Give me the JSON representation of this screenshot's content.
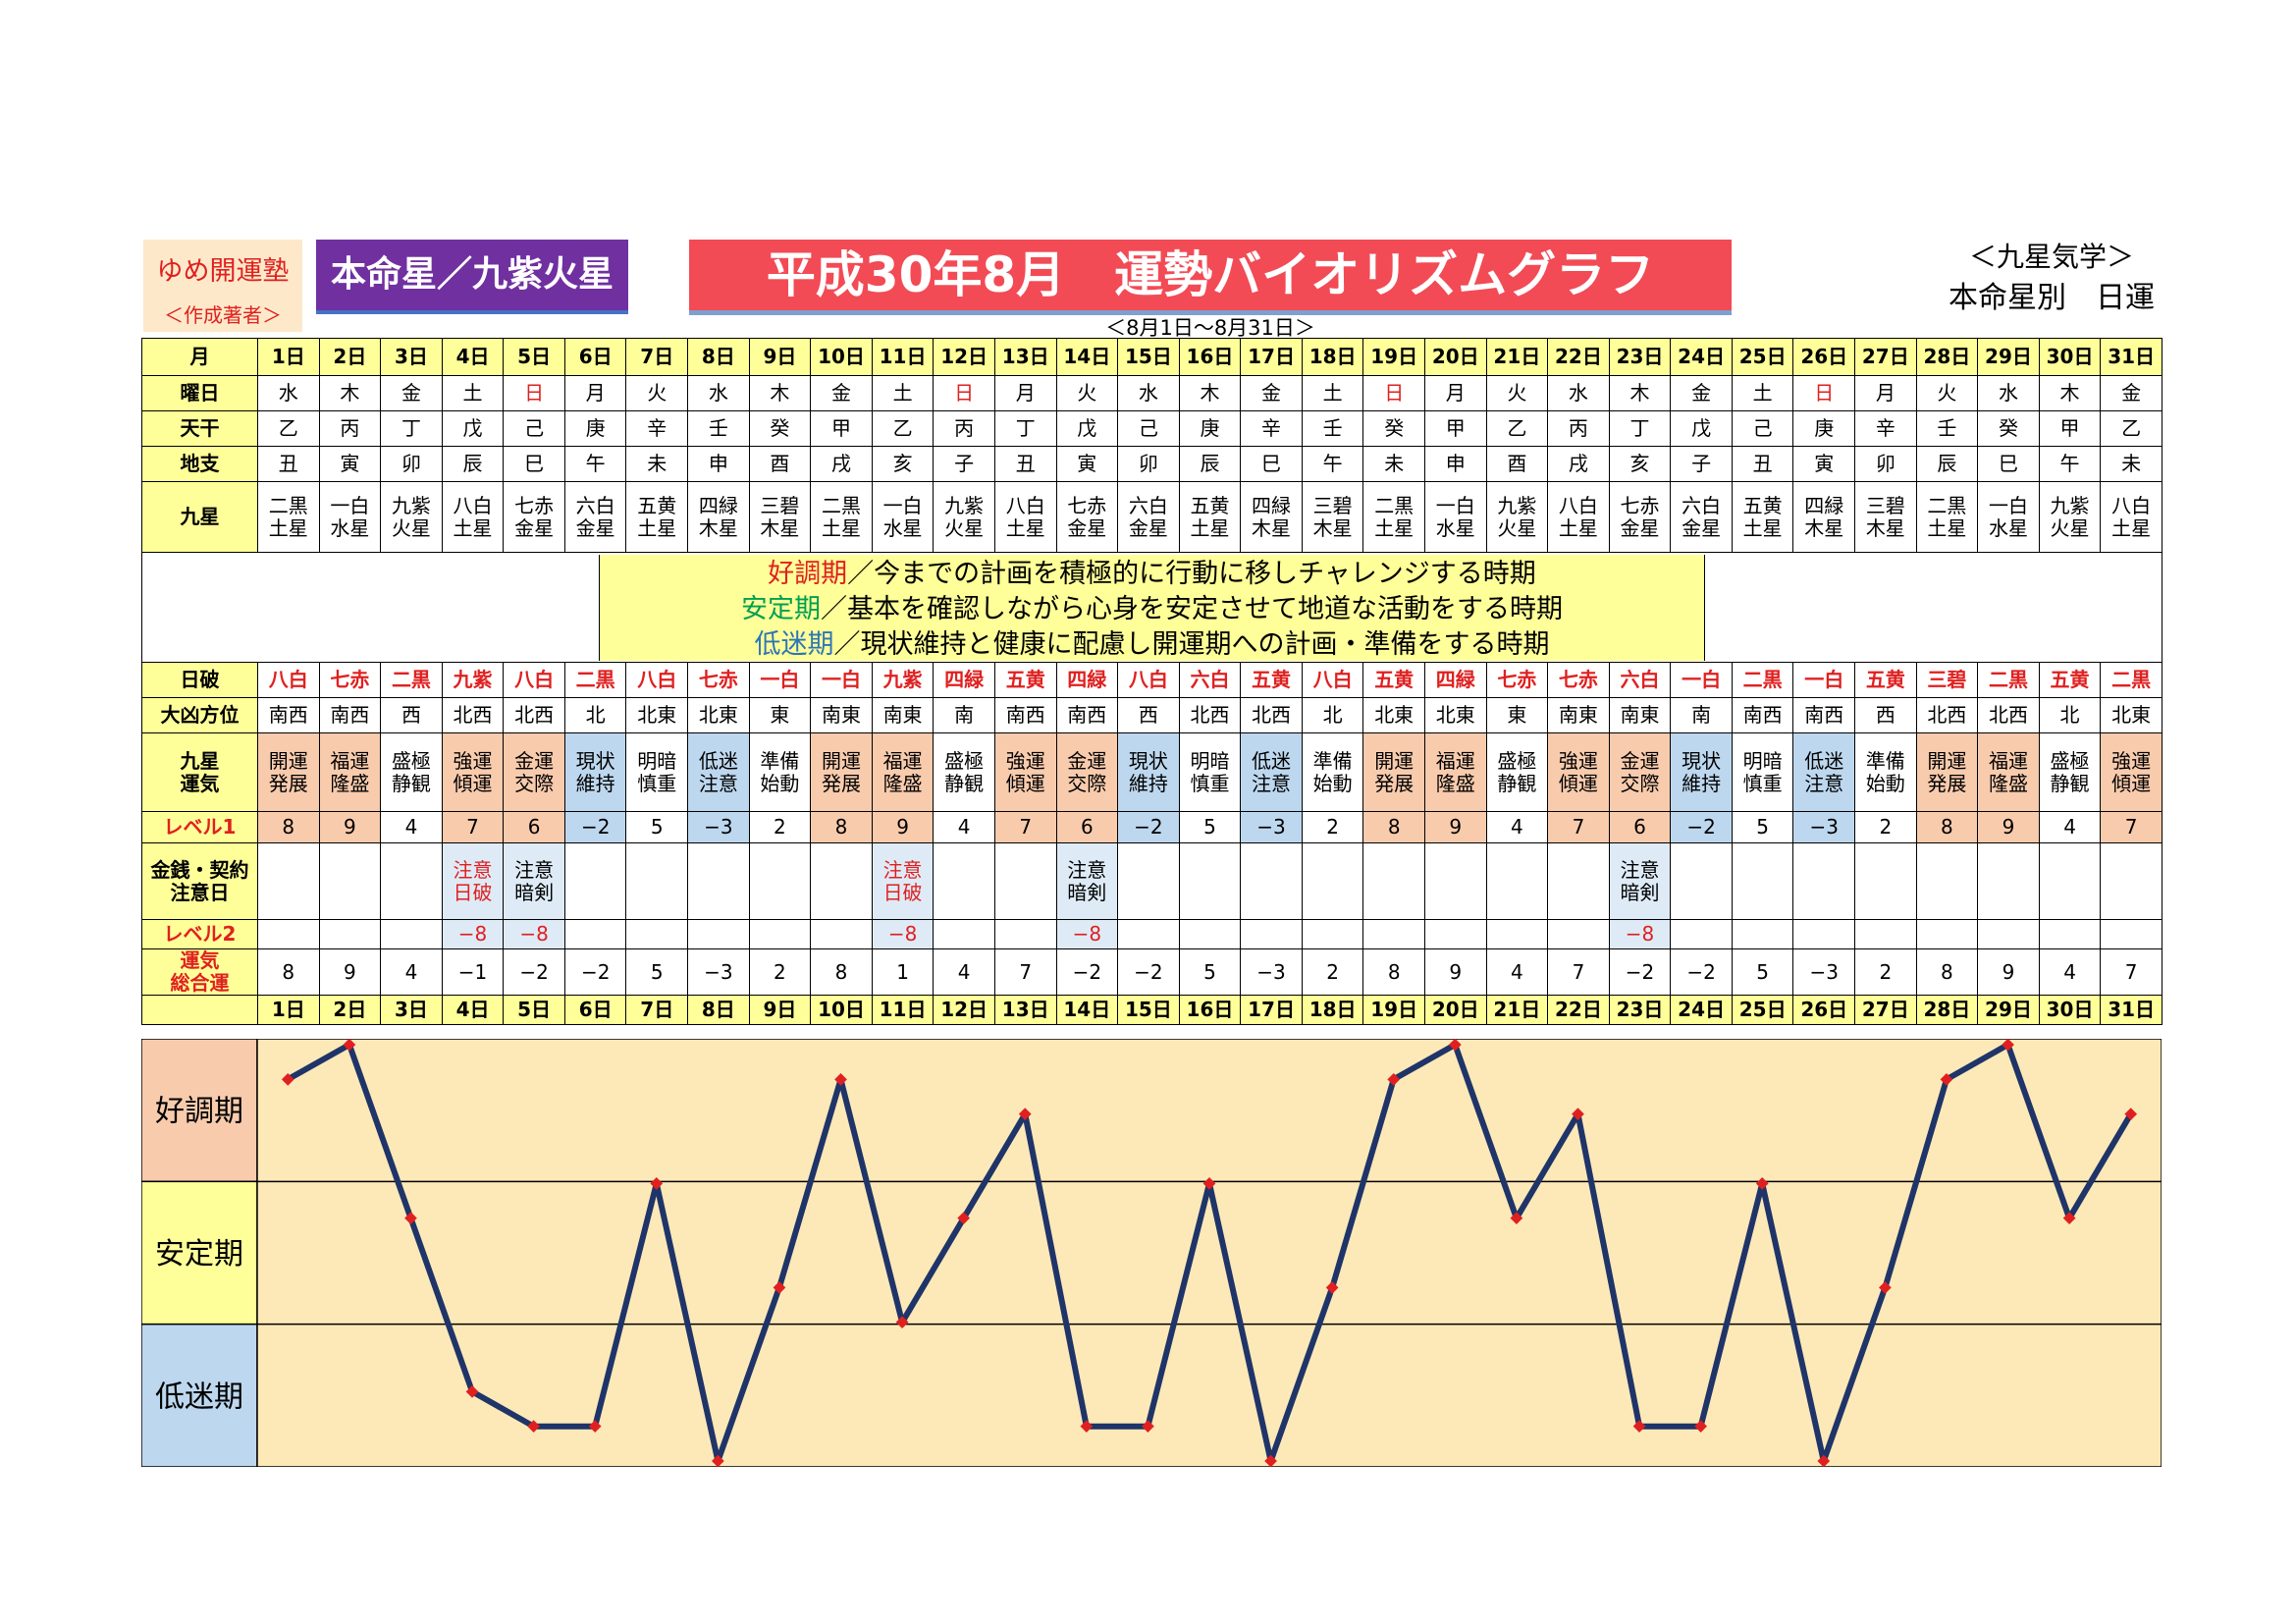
{
  "header": {
    "author_name": "ゆめ開運塾",
    "author_role": "＜作成著者＞",
    "honmei": "本命星／九紫火星",
    "title": "平成30年8月　運勢バイオリズムグラフ",
    "range": "＜8月1日～8月31日＞",
    "right_title1": "＜九星気学＞",
    "right_title2": "本命星別　日運"
  },
  "row_labels": {
    "month": "月",
    "weekday": "曜日",
    "tenkan": "天干",
    "chishi": "地支",
    "kyusei": "九星",
    "nippa": "日破",
    "daikyo": "大凶方位",
    "unki": "九星\n運気",
    "level1": "レベル1",
    "kinsen": "金銭・契約\n注意日",
    "level2": "レベル2",
    "sogo": "運気\n総合運"
  },
  "legend": [
    {
      "label": "好調期",
      "text": "／今までの計画を積極的に行動に移しチャレンジする時期"
    },
    {
      "label": "安定期",
      "text": "／基本を確認しながら心身を安定させて地道な活動をする時期"
    },
    {
      "label": "低迷期",
      "text": "／現状維持と健康に配慮し開運期への計画・準備をする時期"
    }
  ],
  "colors": {
    "red": "#e02020",
    "pink": "#f8cbad",
    "blue": "#bdd7ee",
    "line": "#1f3468",
    "marker": "#e02020",
    "chart_bg": "#fde9b8",
    "yellow": "#ffff99"
  },
  "days": [
    "1日",
    "2日",
    "3日",
    "4日",
    "5日",
    "6日",
    "7日",
    "8日",
    "9日",
    "10日",
    "11日",
    "12日",
    "13日",
    "14日",
    "15日",
    "16日",
    "17日",
    "18日",
    "19日",
    "20日",
    "21日",
    "22日",
    "23日",
    "24日",
    "25日",
    "26日",
    "27日",
    "28日",
    "29日",
    "30日",
    "31日"
  ],
  "weekdays": [
    "水",
    "木",
    "金",
    "土",
    "日",
    "月",
    "火",
    "水",
    "木",
    "金",
    "土",
    "日",
    "月",
    "火",
    "水",
    "木",
    "金",
    "土",
    "日",
    "月",
    "火",
    "水",
    "木",
    "金",
    "土",
    "日",
    "月",
    "火",
    "水",
    "木",
    "金"
  ],
  "tenkan": [
    "乙",
    "丙",
    "丁",
    "戊",
    "己",
    "庚",
    "辛",
    "壬",
    "癸",
    "甲",
    "乙",
    "丙",
    "丁",
    "戊",
    "己",
    "庚",
    "辛",
    "壬",
    "癸",
    "甲",
    "乙",
    "丙",
    "丁",
    "戊",
    "己",
    "庚",
    "辛",
    "壬",
    "癸",
    "甲",
    "乙"
  ],
  "chishi": [
    "丑",
    "寅",
    "卯",
    "辰",
    "巳",
    "午",
    "未",
    "申",
    "酉",
    "戌",
    "亥",
    "子",
    "丑",
    "寅",
    "卯",
    "辰",
    "巳",
    "午",
    "未",
    "申",
    "酉",
    "戌",
    "亥",
    "子",
    "丑",
    "寅",
    "卯",
    "辰",
    "巳",
    "午",
    "未"
  ],
  "kyusei": [
    "二黒\n土星",
    "一白\n水星",
    "九紫\n火星",
    "八白\n土星",
    "七赤\n金星",
    "六白\n金星",
    "五黄\n土星",
    "四緑\n木星",
    "三碧\n木星",
    "二黒\n土星",
    "一白\n水星",
    "九紫\n火星",
    "八白\n土星",
    "七赤\n金星",
    "六白\n金星",
    "五黄\n土星",
    "四緑\n木星",
    "三碧\n木星",
    "二黒\n土星",
    "一白\n水星",
    "九紫\n火星",
    "八白\n土星",
    "七赤\n金星",
    "六白\n金星",
    "五黄\n土星",
    "四緑\n木星",
    "三碧\n木星",
    "二黒\n土星",
    "一白\n水星",
    "九紫\n火星",
    "八白\n土星"
  ],
  "nippa": [
    "八白",
    "七赤",
    "二黒",
    "九紫",
    "八白",
    "二黒",
    "八白",
    "七赤",
    "一白",
    "一白",
    "九紫",
    "四緑",
    "五黄",
    "四緑",
    "八白",
    "六白",
    "五黄",
    "八白",
    "五黄",
    "四緑",
    "七赤",
    "七赤",
    "六白",
    "一白",
    "二黒",
    "一白",
    "五黄",
    "三碧",
    "二黒",
    "五黄",
    "二黒"
  ],
  "daikyo": [
    "南西",
    "南西",
    "西",
    "北西",
    "北西",
    "北",
    "北東",
    "北東",
    "東",
    "南東",
    "南東",
    "南",
    "南西",
    "南西",
    "西",
    "北西",
    "北西",
    "北",
    "北東",
    "北東",
    "東",
    "南東",
    "南東",
    "南",
    "南西",
    "南西",
    "西",
    "北西",
    "北西",
    "北",
    "北東"
  ],
  "unki": [
    "開運\n発展",
    "福運\n隆盛",
    "盛極\n静観",
    "強運\n傾運",
    "金運\n交際",
    "現状\n維持",
    "明暗\n慎重",
    "低迷\n注意",
    "準備\n始動",
    "開運\n発展",
    "福運\n隆盛",
    "盛極\n静観",
    "強運\n傾運",
    "金運\n交際",
    "現状\n維持",
    "明暗\n慎重",
    "低迷\n注意",
    "準備\n始動",
    "開運\n発展",
    "福運\n隆盛",
    "盛極\n静観",
    "強運\n傾運",
    "金運\n交際",
    "現状\n維持",
    "明暗\n慎重",
    "低迷\n注意",
    "準備\n始動",
    "開運\n発展",
    "福運\n隆盛",
    "盛極\n静観",
    "強運\n傾運"
  ],
  "level1": [
    "8",
    "9",
    "4",
    "7",
    "6",
    "−2",
    "5",
    "−3",
    "2",
    "8",
    "9",
    "4",
    "7",
    "6",
    "−2",
    "5",
    "−3",
    "2",
    "8",
    "9",
    "4",
    "7",
    "6",
    "−2",
    "5",
    "−3",
    "2",
    "8",
    "9",
    "4",
    "7"
  ],
  "kinsen": [
    "",
    "",
    "",
    "注意\n日破",
    "注意\n暗剣",
    "",
    "",
    "",
    "",
    "",
    "注意\n日破",
    "",
    "",
    "注意\n暗剣",
    "",
    "",
    "",
    "",
    "",
    "",
    "",
    "",
    "注意\n暗剣",
    "",
    "",
    "",
    "",
    "",
    "",
    "",
    ""
  ],
  "level2": [
    "",
    "",
    "",
    "−8",
    "−8",
    "",
    "",
    "",
    "",
    "",
    "−8",
    "",
    "",
    "−8",
    "",
    "",
    "",
    "",
    "",
    "",
    "",
    "",
    "−8",
    "",
    "",
    "",
    "",
    "",
    "",
    "",
    ""
  ],
  "sogo": [
    "8",
    "9",
    "4",
    "−1",
    "−2",
    "−2",
    "5",
    "−3",
    "2",
    "8",
    "1",
    "4",
    "7",
    "−2",
    "−2",
    "5",
    "−3",
    "2",
    "8",
    "9",
    "4",
    "7",
    "−2",
    "−2",
    "5",
    "−3",
    "2",
    "8",
    "9",
    "4",
    "7"
  ],
  "chart_data": {
    "type": "line",
    "bands": [
      "好調期",
      "安定期",
      "低迷期"
    ],
    "ylim": [
      -3,
      9
    ],
    "x": [
      "1日",
      "2日",
      "3日",
      "4日",
      "5日",
      "6日",
      "7日",
      "8日",
      "9日",
      "10日",
      "11日",
      "12日",
      "13日",
      "14日",
      "15日",
      "16日",
      "17日",
      "18日",
      "19日",
      "20日",
      "21日",
      "22日",
      "23日",
      "24日",
      "25日",
      "26日",
      "27日",
      "28日",
      "29日",
      "30日",
      "31日"
    ],
    "values": [
      8,
      9,
      4,
      -1,
      -2,
      -2,
      5,
      -3,
      2,
      8,
      1,
      4,
      7,
      -2,
      -2,
      5,
      -3,
      2,
      8,
      9,
      4,
      7,
      -2,
      -2,
      5,
      -3,
      2,
      8,
      9,
      4,
      7
    ]
  }
}
